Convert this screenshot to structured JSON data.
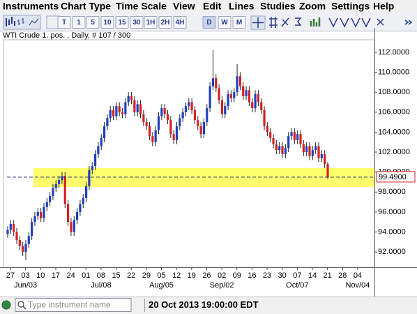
{
  "menu": [
    "Instruments",
    "Chart Type",
    "Time Scale",
    "View",
    "Edit",
    "Lines",
    "Studies",
    "Zoom",
    "Settings",
    "Help"
  ],
  "toolbar": {
    "intervals": [
      "T",
      "1",
      "5",
      "10",
      "15",
      "30",
      "1H",
      "2H",
      "4H",
      "D",
      "W",
      "M"
    ]
  },
  "status": {
    "search_placeholder": "Type instrument name",
    "datetime": "20 Oct 2013 19:00:00 EDT"
  },
  "chart_data": {
    "type": "candlestick",
    "title": "WTI Crude 1. pos. , Daily, # 107 / 300",
    "up_color": "#1f3fbf",
    "down_color": "#d42020",
    "categories": [
      "27",
      "03",
      "10",
      "17",
      "24",
      "01",
      "08",
      "15",
      "22",
      "29",
      "05",
      "12",
      "19",
      "26",
      "02",
      "09",
      "16",
      "23",
      "30",
      "07",
      "14",
      "21",
      "28",
      "04"
    ],
    "month_labels": [
      null,
      "Jun/03",
      null,
      null,
      null,
      null,
      "Jul/08",
      null,
      null,
      null,
      "Aug/05",
      null,
      null,
      null,
      "Sep/02",
      null,
      null,
      null,
      null,
      "Oct/07",
      null,
      null,
      null,
      "Nov/04"
    ],
    "open": [
      93.8,
      94.2,
      94.8,
      94.0,
      93.2,
      92.6,
      92.0,
      92.8,
      93.6,
      95.0,
      95.6,
      96.0,
      95.4,
      96.5,
      97.0,
      97.6,
      98.4,
      98.8,
      99.2,
      99.6,
      96.8,
      95.0,
      94.0,
      95.2,
      96.0,
      96.8,
      97.4,
      98.6,
      100.2,
      100.6,
      101.8,
      102.6,
      103.4,
      104.6,
      105.4,
      106.2,
      105.6,
      106.6,
      106.0,
      105.8,
      107.0,
      107.6,
      107.2,
      106.0,
      106.8,
      105.8,
      105.0,
      104.6,
      103.6,
      103.0,
      104.2,
      105.6,
      106.4,
      105.8,
      105.2,
      103.8,
      103.2,
      104.6,
      105.4,
      106.0,
      106.6,
      107.0,
      106.2,
      105.2,
      104.6,
      103.8,
      105.0,
      106.4,
      108.6,
      109.4,
      108.4,
      107.2,
      105.8,
      106.6,
      107.8,
      107.4,
      108.0,
      109.6,
      108.6,
      107.6,
      108.2,
      107.0,
      106.4,
      107.8,
      107.0,
      106.2,
      104.6,
      104.0,
      103.4,
      102.8,
      102.2,
      102.6,
      101.8,
      102.4,
      103.6,
      104.0,
      103.2,
      103.8,
      102.8,
      102.0,
      102.6,
      101.6,
      102.2,
      102.6,
      101.4,
      101.8,
      100.8
    ],
    "high": [
      94.6,
      95.2,
      95.2,
      94.4,
      93.6,
      93.0,
      93.2,
      94.0,
      95.4,
      96.0,
      96.4,
      96.4,
      96.9,
      97.4,
      98.0,
      98.8,
      99.2,
      99.6,
      100.0,
      100.0,
      97.2,
      95.4,
      95.6,
      96.4,
      97.2,
      97.8,
      99.0,
      100.6,
      101.0,
      102.2,
      103.0,
      103.8,
      105.0,
      105.8,
      106.6,
      106.6,
      107.0,
      107.0,
      106.4,
      107.4,
      108.0,
      108.0,
      107.6,
      107.2,
      107.2,
      106.2,
      105.4,
      105.0,
      104.0,
      104.6,
      106.0,
      106.8,
      106.8,
      106.2,
      105.6,
      104.2,
      105.0,
      105.8,
      106.4,
      107.0,
      107.4,
      107.4,
      106.6,
      105.6,
      105.0,
      105.4,
      106.8,
      109.0,
      112.2,
      109.8,
      108.8,
      107.6,
      107.0,
      108.2,
      108.2,
      108.4,
      110.8,
      110.0,
      109.0,
      108.6,
      108.6,
      107.4,
      108.2,
      108.2,
      107.4,
      106.6,
      105.0,
      104.4,
      103.8,
      103.2,
      103.0,
      103.0,
      102.8,
      104.0,
      104.4,
      104.4,
      104.2,
      104.2,
      103.2,
      103.0,
      103.0,
      102.6,
      103.0,
      103.0,
      102.2,
      102.2,
      101.0
    ],
    "low": [
      93.4,
      93.8,
      93.6,
      92.8,
      92.2,
      91.6,
      91.2,
      92.4,
      93.2,
      94.6,
      95.2,
      95.0,
      95.0,
      96.1,
      96.6,
      97.2,
      98.0,
      98.4,
      98.8,
      96.4,
      94.6,
      93.6,
      93.6,
      94.8,
      95.6,
      96.4,
      97.0,
      98.2,
      99.8,
      100.2,
      101.4,
      102.2,
      103.0,
      104.2,
      105.0,
      105.2,
      105.2,
      105.6,
      105.4,
      105.4,
      106.6,
      106.8,
      105.6,
      105.6,
      105.4,
      104.6,
      104.2,
      103.2,
      102.6,
      102.6,
      103.8,
      105.2,
      105.4,
      104.8,
      103.4,
      102.8,
      102.8,
      104.2,
      105.0,
      105.6,
      106.2,
      105.8,
      104.8,
      104.2,
      103.4,
      103.4,
      104.6,
      106.0,
      108.2,
      108.0,
      106.8,
      105.4,
      105.4,
      106.2,
      107.0,
      107.0,
      107.6,
      108.2,
      107.2,
      107.2,
      106.6,
      106.0,
      106.0,
      106.6,
      105.8,
      104.2,
      103.6,
      103.0,
      102.4,
      101.8,
      101.8,
      101.4,
      101.4,
      102.0,
      103.2,
      102.8,
      102.8,
      102.4,
      101.6,
      101.6,
      101.2,
      101.2,
      101.8,
      101.0,
      101.0,
      100.4,
      99.3
    ],
    "close": [
      94.2,
      94.8,
      94.0,
      93.2,
      92.6,
      92.0,
      92.8,
      93.6,
      95.0,
      95.6,
      96.0,
      95.4,
      96.5,
      97.0,
      97.6,
      98.4,
      98.8,
      99.2,
      99.6,
      96.8,
      95.0,
      94.0,
      95.2,
      96.0,
      96.8,
      97.4,
      98.6,
      100.2,
      100.6,
      101.8,
      102.6,
      103.4,
      104.6,
      105.4,
      106.2,
      105.6,
      106.6,
      106.0,
      105.8,
      107.0,
      107.6,
      107.2,
      106.0,
      106.8,
      105.8,
      105.0,
      104.6,
      103.6,
      103.0,
      104.2,
      105.6,
      106.4,
      105.8,
      105.2,
      103.8,
      103.2,
      104.6,
      105.4,
      106.0,
      106.6,
      107.0,
      106.2,
      105.2,
      104.6,
      103.8,
      105.0,
      106.4,
      108.6,
      109.4,
      108.4,
      107.2,
      105.8,
      106.6,
      107.8,
      107.4,
      108.0,
      109.6,
      108.6,
      107.6,
      108.2,
      107.0,
      106.4,
      107.8,
      107.0,
      106.2,
      104.6,
      104.0,
      103.4,
      102.8,
      102.2,
      102.6,
      101.8,
      102.4,
      103.6,
      104.0,
      103.2,
      103.8,
      102.8,
      102.0,
      102.6,
      101.6,
      102.2,
      102.6,
      101.4,
      101.8,
      100.8,
      99.49
    ],
    "ylim": [
      90.47,
      113.25
    ],
    "yticks": [
      {
        "value": 92,
        "label": "92.0000"
      },
      {
        "value": 94,
        "label": "94.0000"
      },
      {
        "value": 96,
        "label": "96.0000"
      },
      {
        "value": 98,
        "label": "98.0000"
      },
      {
        "value": 100,
        "label": "100.0000"
      },
      {
        "value": 102,
        "label": "102.0000"
      },
      {
        "value": 104,
        "label": "104.0000"
      },
      {
        "value": 106,
        "label": "106.0000"
      },
      {
        "value": 108,
        "label": "108.0000"
      },
      {
        "value": 110,
        "label": "110.0000"
      },
      {
        "value": 112,
        "label": "112.0000"
      }
    ],
    "highlight_band": [
      98.5,
      100.4
    ],
    "band_color": "#ffff55",
    "last_price": {
      "value": 99.49,
      "label": "99.4900"
    },
    "last_price_color": "#d42020"
  }
}
